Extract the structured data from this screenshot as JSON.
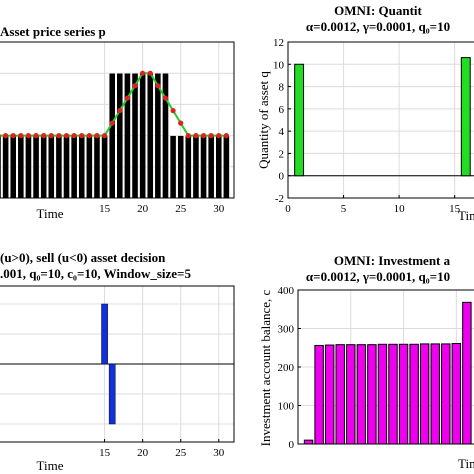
{
  "chart_data": [
    {
      "type": "bar",
      "title": "Asset price series p",
      "xlabel": "Time",
      "ylabel": "",
      "xlim": [
        1,
        32
      ],
      "ylim": [
        0,
        1.25
      ],
      "xticks": [
        15,
        20,
        25,
        30
      ],
      "grid": true,
      "bars": {
        "x": [
          1,
          2,
          3,
          4,
          5,
          6,
          7,
          8,
          9,
          10,
          11,
          12,
          13,
          14,
          15,
          16,
          17,
          18,
          19,
          20,
          21,
          22,
          23,
          24,
          25,
          26,
          27,
          28,
          29,
          30,
          31
        ],
        "values": [
          0.5,
          0.5,
          0.5,
          0.5,
          0.5,
          0.5,
          0.5,
          0.5,
          0.5,
          0.5,
          0.5,
          0.5,
          0.5,
          0.5,
          0.5,
          1.0,
          1.0,
          1.0,
          1.0,
          1.0,
          1.0,
          1.0,
          1.0,
          0.5,
          0.5,
          0.5,
          0.5,
          0.5,
          0.5,
          0.5,
          0.5
        ]
      },
      "line": {
        "x": [
          1,
          2,
          3,
          4,
          5,
          6,
          7,
          8,
          9,
          10,
          11,
          12,
          13,
          14,
          15,
          16,
          17,
          18,
          19,
          20,
          21,
          22,
          23,
          24,
          25,
          26,
          27,
          28,
          29,
          30,
          31
        ],
        "values": [
          0.5,
          0.5,
          0.5,
          0.5,
          0.5,
          0.5,
          0.5,
          0.5,
          0.5,
          0.5,
          0.5,
          0.5,
          0.5,
          0.5,
          0.5,
          0.6,
          0.7,
          0.8,
          0.9,
          1.0,
          1.0,
          0.9,
          0.8,
          0.7,
          0.6,
          0.5,
          0.5,
          0.5,
          0.5,
          0.5,
          0.5
        ]
      },
      "colors": {
        "bars": "#000000",
        "line": "#22cc22",
        "markers": "#dd2222"
      }
    },
    {
      "type": "bar",
      "title": "OMNI: Quantit",
      "subtitle": "α=0.0012, γ=0.0001, q₀=10",
      "xlabel": "Time",
      "ylabel": "Quantity of asset q",
      "xlim": [
        0,
        18
      ],
      "ylim": [
        -2,
        12
      ],
      "xticks": [
        0,
        5,
        10,
        15
      ],
      "yticks": [
        -2,
        0,
        2,
        4,
        6,
        8,
        10,
        12
      ],
      "grid": true,
      "x": [
        1,
        2,
        3,
        4,
        5,
        6,
        7,
        8,
        9,
        10,
        11,
        12,
        13,
        14,
        15,
        16
      ],
      "values": [
        10,
        0,
        0,
        0,
        0,
        0,
        0,
        0,
        0,
        0,
        0,
        0,
        0,
        0,
        0,
        10.6
      ],
      "colors": {
        "bars": "#22dd22"
      }
    },
    {
      "type": "bar",
      "title": "(u>0), sell (u<0) asset decision",
      "subtitle": ".001, q₀=10, c₀=10, Window_size=5",
      "xlabel": "Time",
      "ylabel": "",
      "xlim": [
        1,
        32
      ],
      "ylim": [
        -1.3,
        1.3
      ],
      "xticks": [
        15,
        20,
        25,
        30
      ],
      "grid": true,
      "x": [
        15,
        16
      ],
      "values": [
        1.0,
        -1.0
      ],
      "colors": {
        "bars": "#1030dd"
      }
    },
    {
      "type": "bar",
      "title": "OMNI: Investment a",
      "subtitle": "α=0.0012, γ=0.0001, q₀=10",
      "xlabel": "Time",
      "ylabel": "Investment account balance, c",
      "xlim": [
        0,
        18
      ],
      "ylim": [
        0,
        400
      ],
      "yticks": [
        0,
        100,
        200,
        300,
        400
      ],
      "grid": true,
      "x": [
        1,
        2,
        3,
        4,
        5,
        6,
        7,
        8,
        9,
        10,
        11,
        12,
        13,
        14,
        15,
        16
      ],
      "values": [
        10,
        256,
        257,
        258,
        258,
        258,
        258,
        259,
        259,
        259,
        259,
        260,
        260,
        260,
        261,
        368
      ],
      "colors": {
        "bars": "#ee00ee"
      }
    }
  ]
}
